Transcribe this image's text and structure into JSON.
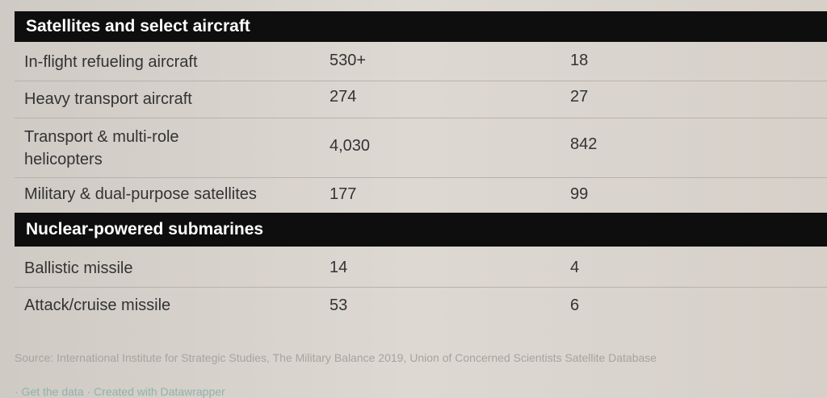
{
  "sections": [
    {
      "title": "Satellites and select aircraft",
      "rows": [
        {
          "label": "In-flight refueling aircraft",
          "v1": "530+",
          "v2": "18"
        },
        {
          "label": "Heavy transport aircraft",
          "v1": "274",
          "v2": "27"
        },
        {
          "label": "Transport & multi-role helicopters",
          "v1": "4,030",
          "v2": "842"
        },
        {
          "label": "Military & dual-purpose satellites",
          "v1": "177",
          "v2": "99"
        }
      ]
    },
    {
      "title": "Nuclear-powered submarines",
      "rows": [
        {
          "label": "Ballistic missile",
          "v1": "14",
          "v2": "4"
        },
        {
          "label": "Attack/cruise missile",
          "v1": "53",
          "v2": "6"
        }
      ]
    }
  ],
  "footer": {
    "source": "Source: International Institute for Strategic Studies, The Military Balance 2019, Union of Concerned Scientists Satellite Database",
    "get_data": "· Get the data",
    "created": " · Created with Datawrapper"
  }
}
